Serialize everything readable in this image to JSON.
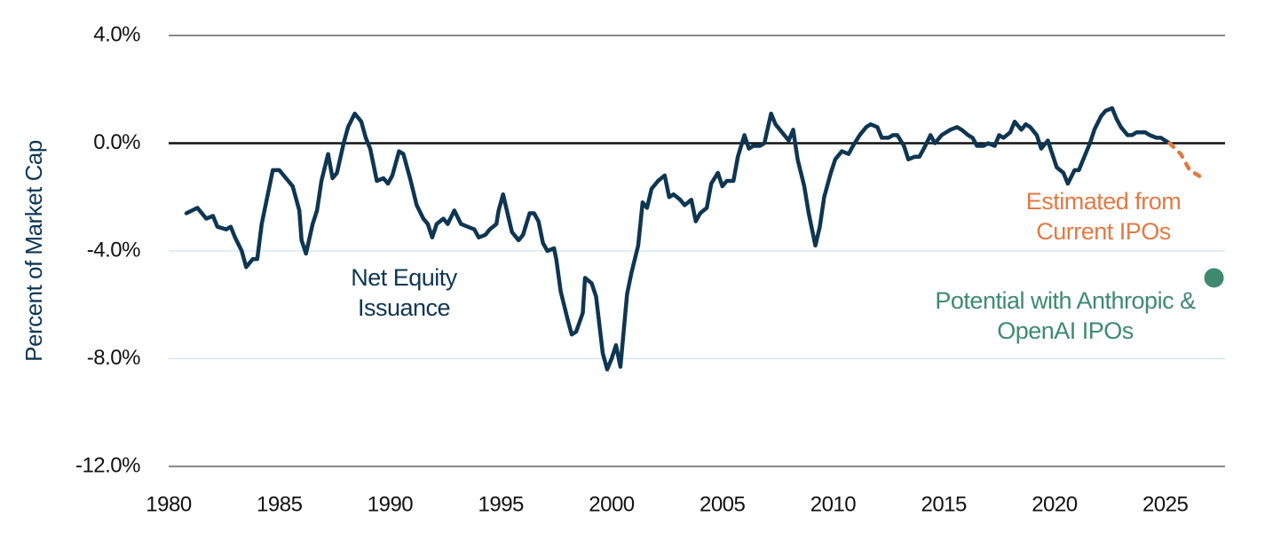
{
  "chart_data": {
    "type": "line",
    "y_label": "Percent of Market Cap",
    "xlim": [
      1980,
      2027.7
    ],
    "ylim": [
      -12,
      4
    ],
    "xticks": [
      1980,
      1985,
      1990,
      1995,
      2000,
      2005,
      2010,
      2015,
      2020,
      2025
    ],
    "yticks": [
      {
        "value": 4,
        "label": "4.0%"
      },
      {
        "value": 0,
        "label": "0.0%"
      },
      {
        "value": -4,
        "label": "-4.0%"
      },
      {
        "value": -8,
        "label": "-8.0%"
      },
      {
        "value": -12,
        "label": "-12.0%"
      }
    ],
    "grid": true,
    "series": [
      {
        "name": "Net Equity Issuance",
        "color": "#0e3652",
        "style": "solid",
        "x": [
          1980.8,
          1981.3,
          1981.7,
          1982.0,
          1982.2,
          1982.6,
          1982.8,
          1983.0,
          1983.3,
          1983.5,
          1983.8,
          1984.0,
          1984.2,
          1984.5,
          1984.7,
          1985.0,
          1985.3,
          1985.6,
          1985.9,
          1986.0,
          1986.2,
          1986.5,
          1986.7,
          1986.9,
          1987.2,
          1987.4,
          1987.6,
          1987.9,
          1988.1,
          1988.4,
          1988.7,
          1988.9,
          1989.1,
          1989.4,
          1989.7,
          1989.9,
          1990.1,
          1990.4,
          1990.6,
          1990.9,
          1991.2,
          1991.5,
          1991.7,
          1991.9,
          1992.1,
          1992.4,
          1992.6,
          1992.9,
          1993.2,
          1993.5,
          1993.8,
          1994.0,
          1994.3,
          1994.5,
          1994.8,
          1994.9,
          1995.1,
          1995.3,
          1995.5,
          1995.8,
          1996.0,
          1996.3,
          1996.5,
          1996.7,
          1996.9,
          1997.1,
          1997.4,
          1997.5,
          1997.7,
          1998.0,
          1998.2,
          1998.4,
          1998.7,
          1998.8,
          1999.1,
          1999.3,
          1999.6,
          1999.8,
          2000.0,
          2000.2,
          2000.4,
          2000.7,
          2000.9,
          2001.2,
          2001.4,
          2001.6,
          2001.8,
          2002.1,
          2002.4,
          2002.6,
          2002.8,
          2003.1,
          2003.3,
          2003.6,
          2003.8,
          2004.0,
          2004.3,
          2004.5,
          2004.8,
          2005.0,
          2005.2,
          2005.5,
          2005.7,
          2006.0,
          2006.2,
          2006.4,
          2006.7,
          2006.9,
          2007.2,
          2007.4,
          2007.7,
          2008.0,
          2008.2,
          2008.4,
          2008.7,
          2008.9,
          2009.2,
          2009.4,
          2009.6,
          2009.9,
          2010.1,
          2010.4,
          2010.7,
          2010.9,
          2011.2,
          2011.5,
          2011.7,
          2012.0,
          2012.2,
          2012.5,
          2012.7,
          2012.9,
          2013.2,
          2013.4,
          2013.7,
          2013.9,
          2014.1,
          2014.4,
          2014.6,
          2014.9,
          2015.1,
          2015.3,
          2015.6,
          2015.8,
          2016.1,
          2016.3,
          2016.5,
          2016.8,
          2017.0,
          2017.3,
          2017.5,
          2017.7,
          2018.0,
          2018.2,
          2018.5,
          2018.7,
          2018.9,
          2019.2,
          2019.4,
          2019.7,
          2019.9,
          2020.1,
          2020.4,
          2020.6,
          2020.9,
          2021.1,
          2021.3,
          2021.6,
          2021.8,
          2022.1,
          2022.3,
          2022.6,
          2022.8,
          2023.0,
          2023.3,
          2023.5,
          2023.7,
          2024.1,
          2024.3,
          2024.6,
          2024.8,
          2025.0,
          2025.2
        ],
        "values": [
          -2.6,
          -2.4,
          -2.8,
          -2.7,
          -3.1,
          -3.2,
          -3.1,
          -3.5,
          -4.0,
          -4.6,
          -4.3,
          -4.3,
          -3.0,
          -1.8,
          -1.0,
          -1.0,
          -1.3,
          -1.6,
          -2.5,
          -3.6,
          -4.1,
          -3.0,
          -2.5,
          -1.4,
          -0.4,
          -1.3,
          -1.1,
          0.0,
          0.6,
          1.1,
          0.8,
          0.2,
          -0.2,
          -1.4,
          -1.3,
          -1.5,
          -1.2,
          -0.3,
          -0.4,
          -1.3,
          -2.3,
          -2.8,
          -3.0,
          -3.5,
          -3.0,
          -2.8,
          -3.0,
          -2.5,
          -3.0,
          -3.1,
          -3.2,
          -3.5,
          -3.4,
          -3.2,
          -3.0,
          -2.5,
          -1.9,
          -2.6,
          -3.3,
          -3.6,
          -3.4,
          -2.6,
          -2.6,
          -2.9,
          -3.7,
          -4.0,
          -3.9,
          -4.3,
          -5.5,
          -6.5,
          -7.1,
          -7.0,
          -6.3,
          -5.0,
          -5.2,
          -5.7,
          -7.8,
          -8.4,
          -8.0,
          -7.5,
          -8.3,
          -5.6,
          -4.8,
          -3.8,
          -2.2,
          -2.4,
          -1.7,
          -1.4,
          -1.2,
          -2.0,
          -1.9,
          -2.1,
          -2.3,
          -2.1,
          -2.9,
          -2.6,
          -2.4,
          -1.5,
          -1.1,
          -1.6,
          -1.4,
          -1.4,
          -0.5,
          0.3,
          -0.2,
          -0.1,
          -0.1,
          0.0,
          1.1,
          0.7,
          0.4,
          0.1,
          0.5,
          -0.6,
          -1.6,
          -2.6,
          -3.8,
          -3.1,
          -2.0,
          -1.1,
          -0.6,
          -0.3,
          -0.4,
          -0.1,
          0.3,
          0.6,
          0.7,
          0.6,
          0.2,
          0.2,
          0.3,
          0.3,
          -0.1,
          -0.6,
          -0.5,
          -0.5,
          -0.2,
          0.3,
          0.0,
          0.3,
          0.4,
          0.5,
          0.6,
          0.5,
          0.3,
          0.2,
          -0.1,
          -0.1,
          0.0,
          -0.1,
          0.3,
          0.2,
          0.4,
          0.8,
          0.5,
          0.7,
          0.6,
          0.3,
          -0.2,
          0.1,
          -0.4,
          -0.9,
          -1.1,
          -1.5,
          -1.0,
          -1.0,
          -0.6,
          0.0,
          0.5,
          1.0,
          1.2,
          1.3,
          0.9,
          0.6,
          0.3,
          0.3,
          0.4,
          0.4,
          0.3,
          0.2,
          0.2,
          0.1,
          0.0
        ]
      },
      {
        "name": "Estimated from Current IPOs",
        "color": "#e07a45",
        "style": "dashed",
        "x": [
          2025.2,
          2025.7,
          2026.1,
          2026.7
        ],
        "values": [
          0.0,
          -0.4,
          -1.0,
          -1.3
        ]
      },
      {
        "name": "Potential with Anthropic & OpenAI IPOs",
        "color": "#3e8a6f",
        "style": "point",
        "x": [
          2027.2
        ],
        "values": [
          -5.0
        ]
      }
    ]
  }
}
